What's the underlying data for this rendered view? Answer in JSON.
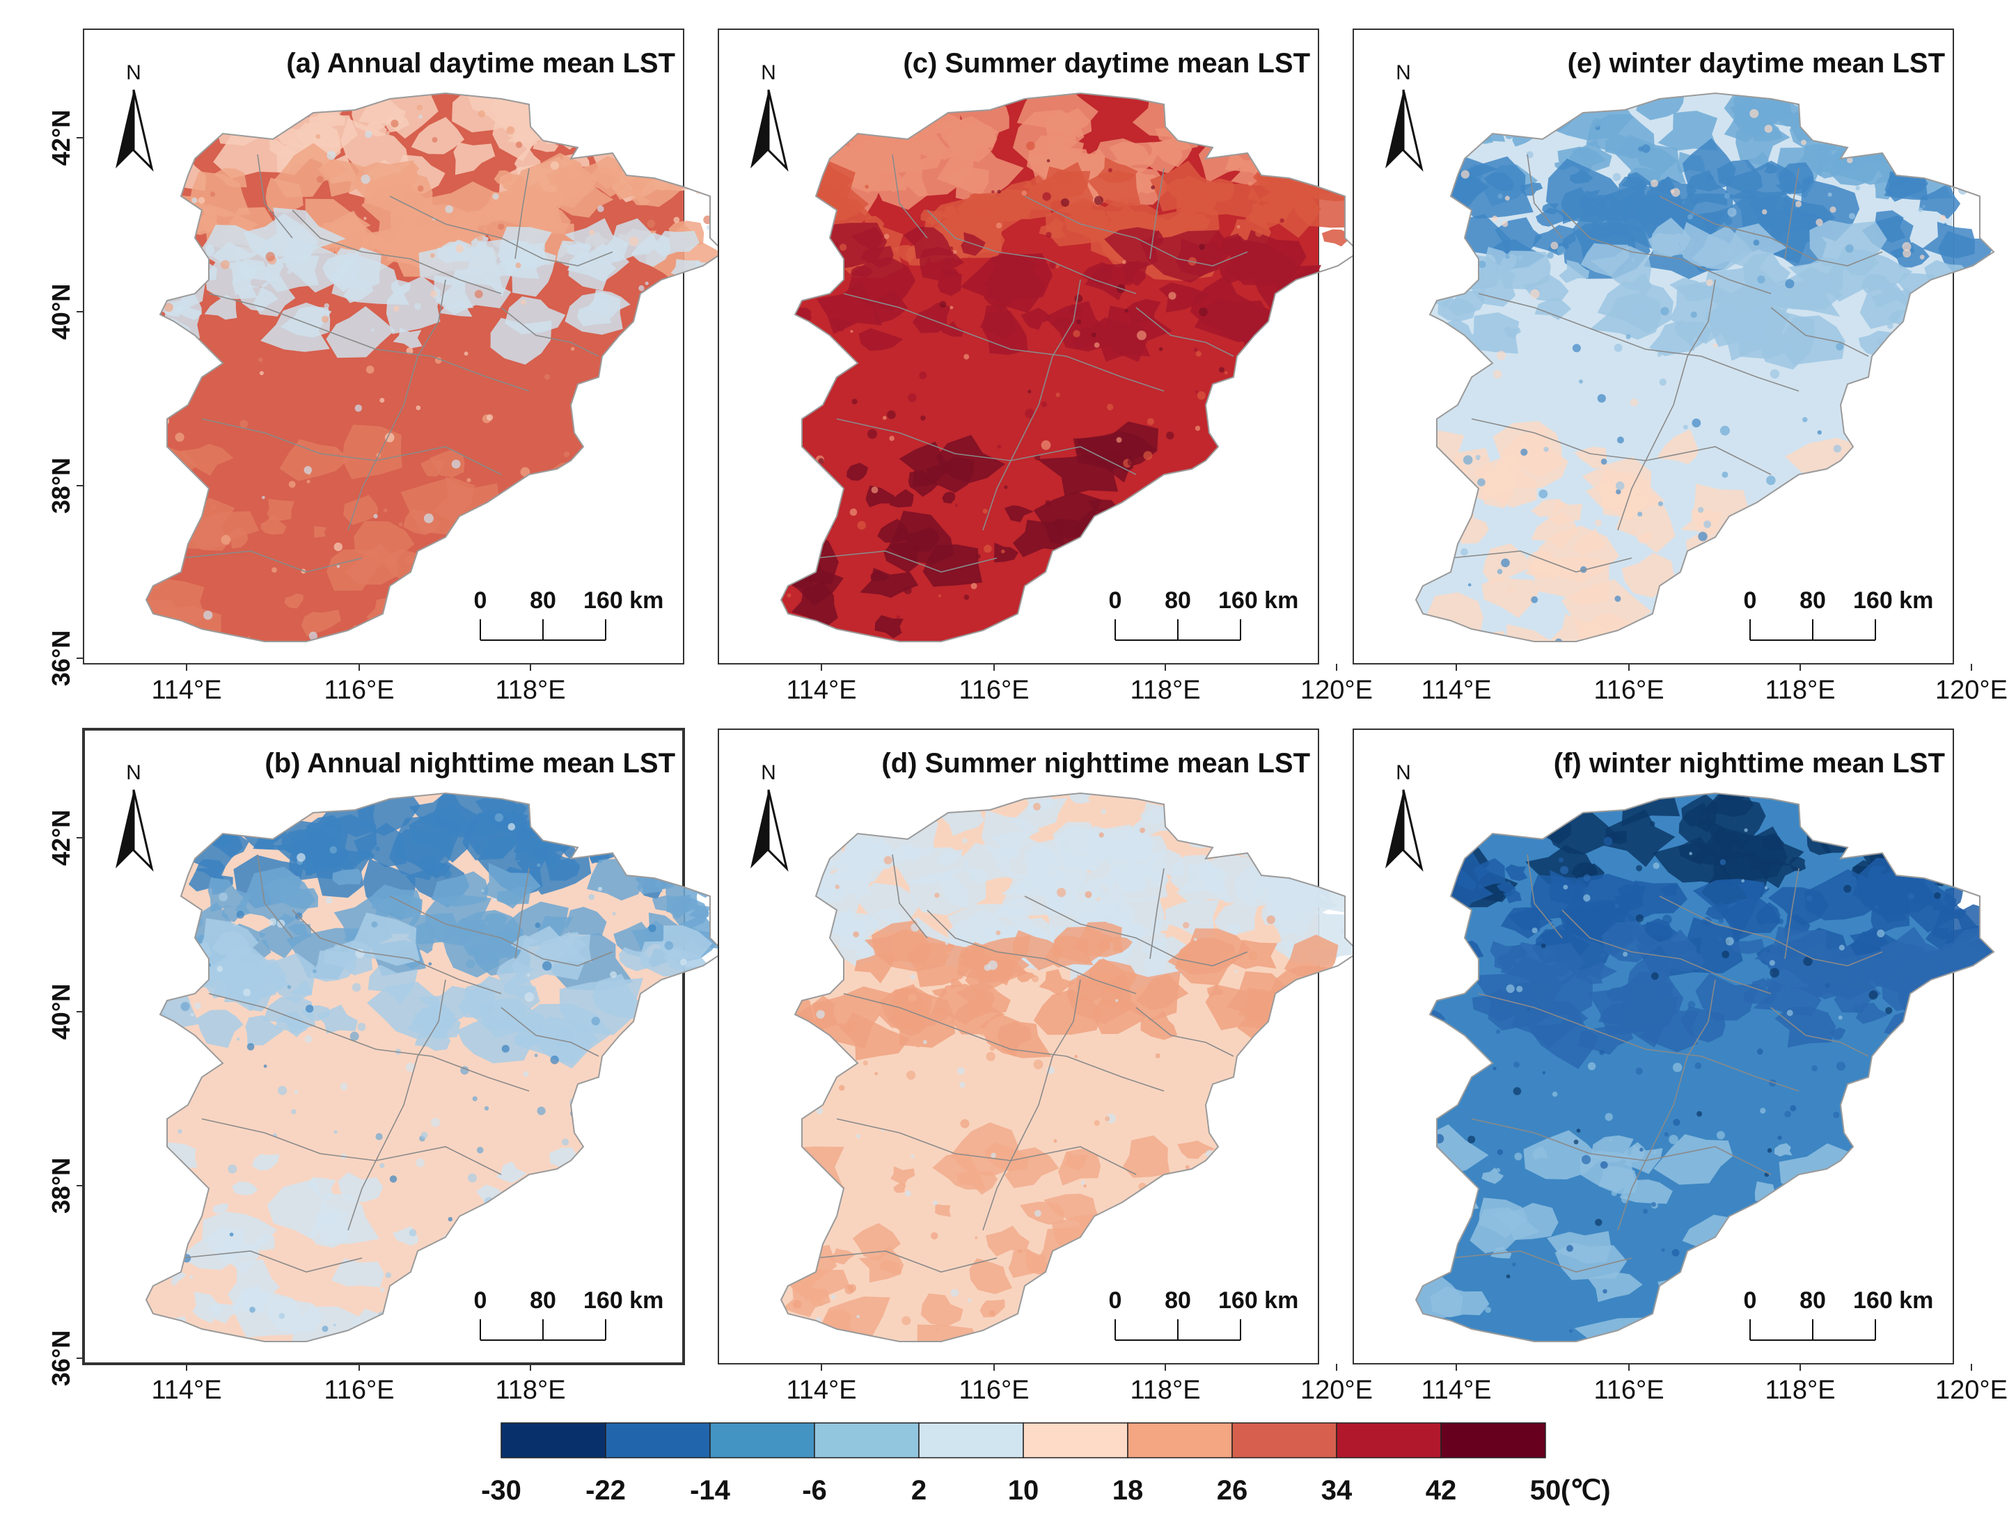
{
  "panels": [
    {
      "id": "a",
      "title": "(a) Annual daytime mean LST",
      "main": "#d7604e",
      "bands": [
        {
          "c": "#f7cdb8"
        },
        {
          "c": "#f0a686"
        },
        {
          "c": "#cfe0ec"
        },
        {
          "c": "#e07a5f"
        }
      ]
    },
    {
      "id": "c",
      "title": "(c) Summer daytime mean LST",
      "main": "#c1272d",
      "bands": [
        {
          "c": "#ec9075"
        },
        {
          "c": "#d9573f"
        },
        {
          "c": "#a5182c"
        },
        {
          "c": "#7a0f24"
        }
      ]
    },
    {
      "id": "e",
      "title": "(e) winter daytime mean LST",
      "main": "#d1e3f0",
      "bands": [
        {
          "c": "#6eaad6"
        },
        {
          "c": "#3f86c4"
        },
        {
          "c": "#9cc5e3"
        },
        {
          "c": "#fad9c6"
        }
      ]
    },
    {
      "id": "b",
      "title": "(b) Annual nighttime mean LST",
      "main": "#f8d5c2",
      "bands": [
        {
          "c": "#3b83c1"
        },
        {
          "c": "#6ea7d2"
        },
        {
          "c": "#a9cde6"
        },
        {
          "c": "#d3e4f0"
        }
      ]
    },
    {
      "id": "d",
      "title": "(d) Summer nighttime mean LST",
      "main": "#f8d4bf",
      "bands": [
        {
          "c": "#d3e4f0"
        },
        {
          "c": "#d3e4f0"
        },
        {
          "c": "#f0a280"
        },
        {
          "c": "#f2ac8c"
        }
      ]
    },
    {
      "id": "f",
      "title": "(f) winter nighttime mean LST",
      "main": "#3d86c3",
      "bands": [
        {
          "c": "#0c3868"
        },
        {
          "c": "#1f5ea8"
        },
        {
          "c": "#2a69b0"
        },
        {
          "c": "#8fc0e0"
        }
      ]
    }
  ],
  "north_label": "N",
  "scale_bar": {
    "ticks": [
      "0",
      "80",
      "160 km"
    ]
  },
  "lat_labels": [
    "42°N",
    "40°N",
    "38°N",
    "36°N"
  ],
  "lon_labels_full": [
    "114°E",
    "116°E",
    "118°E",
    "120°E"
  ],
  "lon_labels_short": [
    "114°E",
    "116°E",
    "118°E"
  ],
  "legend": {
    "breaks": [
      "-30",
      "-22",
      "-14",
      "-6",
      "2",
      "10",
      "18",
      "26",
      "34",
      "42",
      "50"
    ],
    "unit": "(℃)",
    "colors": [
      "#08306b",
      "#2166ac",
      "#4393c3",
      "#92c5de",
      "#d1e5f0",
      "#fddbc7",
      "#f4a582",
      "#d6604d",
      "#b2182b",
      "#67001f"
    ]
  }
}
